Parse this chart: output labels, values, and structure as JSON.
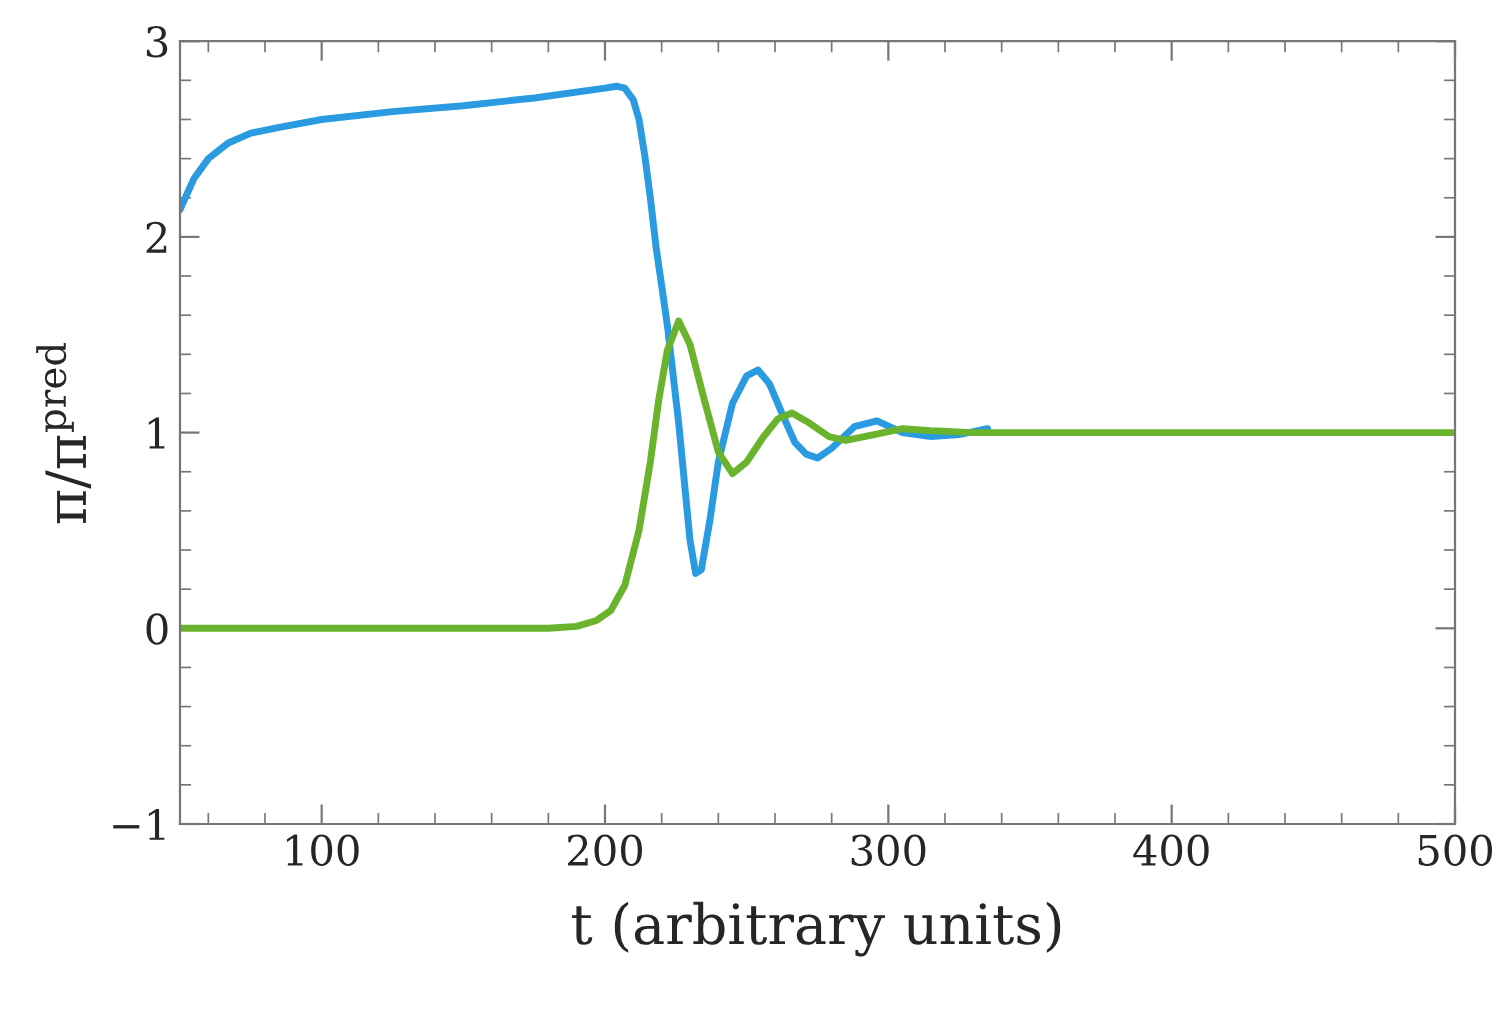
{
  "chart_data": {
    "type": "line",
    "xlabel": "t (arbitrary units)",
    "ylabel": "π/π$^{pred}$",
    "xlim": [
      50,
      500
    ],
    "xticks": [
      100,
      200,
      300,
      400,
      500
    ],
    "ylim": [
      -1,
      3
    ],
    "yticks": [
      -1,
      0,
      1,
      2,
      3
    ],
    "grid": false,
    "legend": false,
    "marker": "none",
    "line_style": "solid",
    "series": [
      {
        "color": "#2a9be0",
        "x": [
          50,
          55,
          60,
          67,
          75,
          85,
          100,
          125,
          150,
          175,
          200,
          204,
          207,
          210,
          212,
          214,
          216,
          218,
          220,
          222,
          224,
          226,
          228,
          230,
          232,
          234,
          237,
          240,
          245,
          250,
          254,
          258,
          263,
          267,
          271,
          275,
          280,
          288,
          296,
          305,
          315,
          325,
          335
        ],
        "values": [
          2.14,
          2.3,
          2.4,
          2.48,
          2.53,
          2.56,
          2.6,
          2.64,
          2.67,
          2.71,
          2.76,
          2.77,
          2.76,
          2.7,
          2.6,
          2.42,
          2.2,
          1.95,
          1.75,
          1.55,
          1.3,
          1.05,
          0.75,
          0.45,
          0.28,
          0.3,
          0.55,
          0.85,
          1.15,
          1.29,
          1.32,
          1.25,
          1.08,
          0.95,
          0.89,
          0.87,
          0.92,
          1.03,
          1.06,
          1.0,
          0.98,
          0.99,
          1.02
        ]
      },
      {
        "color": "#6ab42d",
        "x": [
          50,
          100,
          150,
          180,
          190,
          197,
          202,
          207,
          212,
          216,
          219,
          222,
          226,
          230,
          235,
          240,
          245,
          250,
          256,
          261,
          266,
          272,
          279,
          285,
          295,
          305,
          315,
          330,
          350,
          400,
          450,
          500
        ],
        "values": [
          0,
          0,
          0,
          0,
          0.01,
          0.04,
          0.09,
          0.22,
          0.5,
          0.85,
          1.17,
          1.42,
          1.57,
          1.45,
          1.17,
          0.9,
          0.79,
          0.85,
          0.98,
          1.07,
          1.1,
          1.05,
          0.98,
          0.96,
          0.99,
          1.02,
          1.01,
          1.0,
          1.0,
          1.0,
          1.0,
          1.0
        ]
      }
    ]
  }
}
